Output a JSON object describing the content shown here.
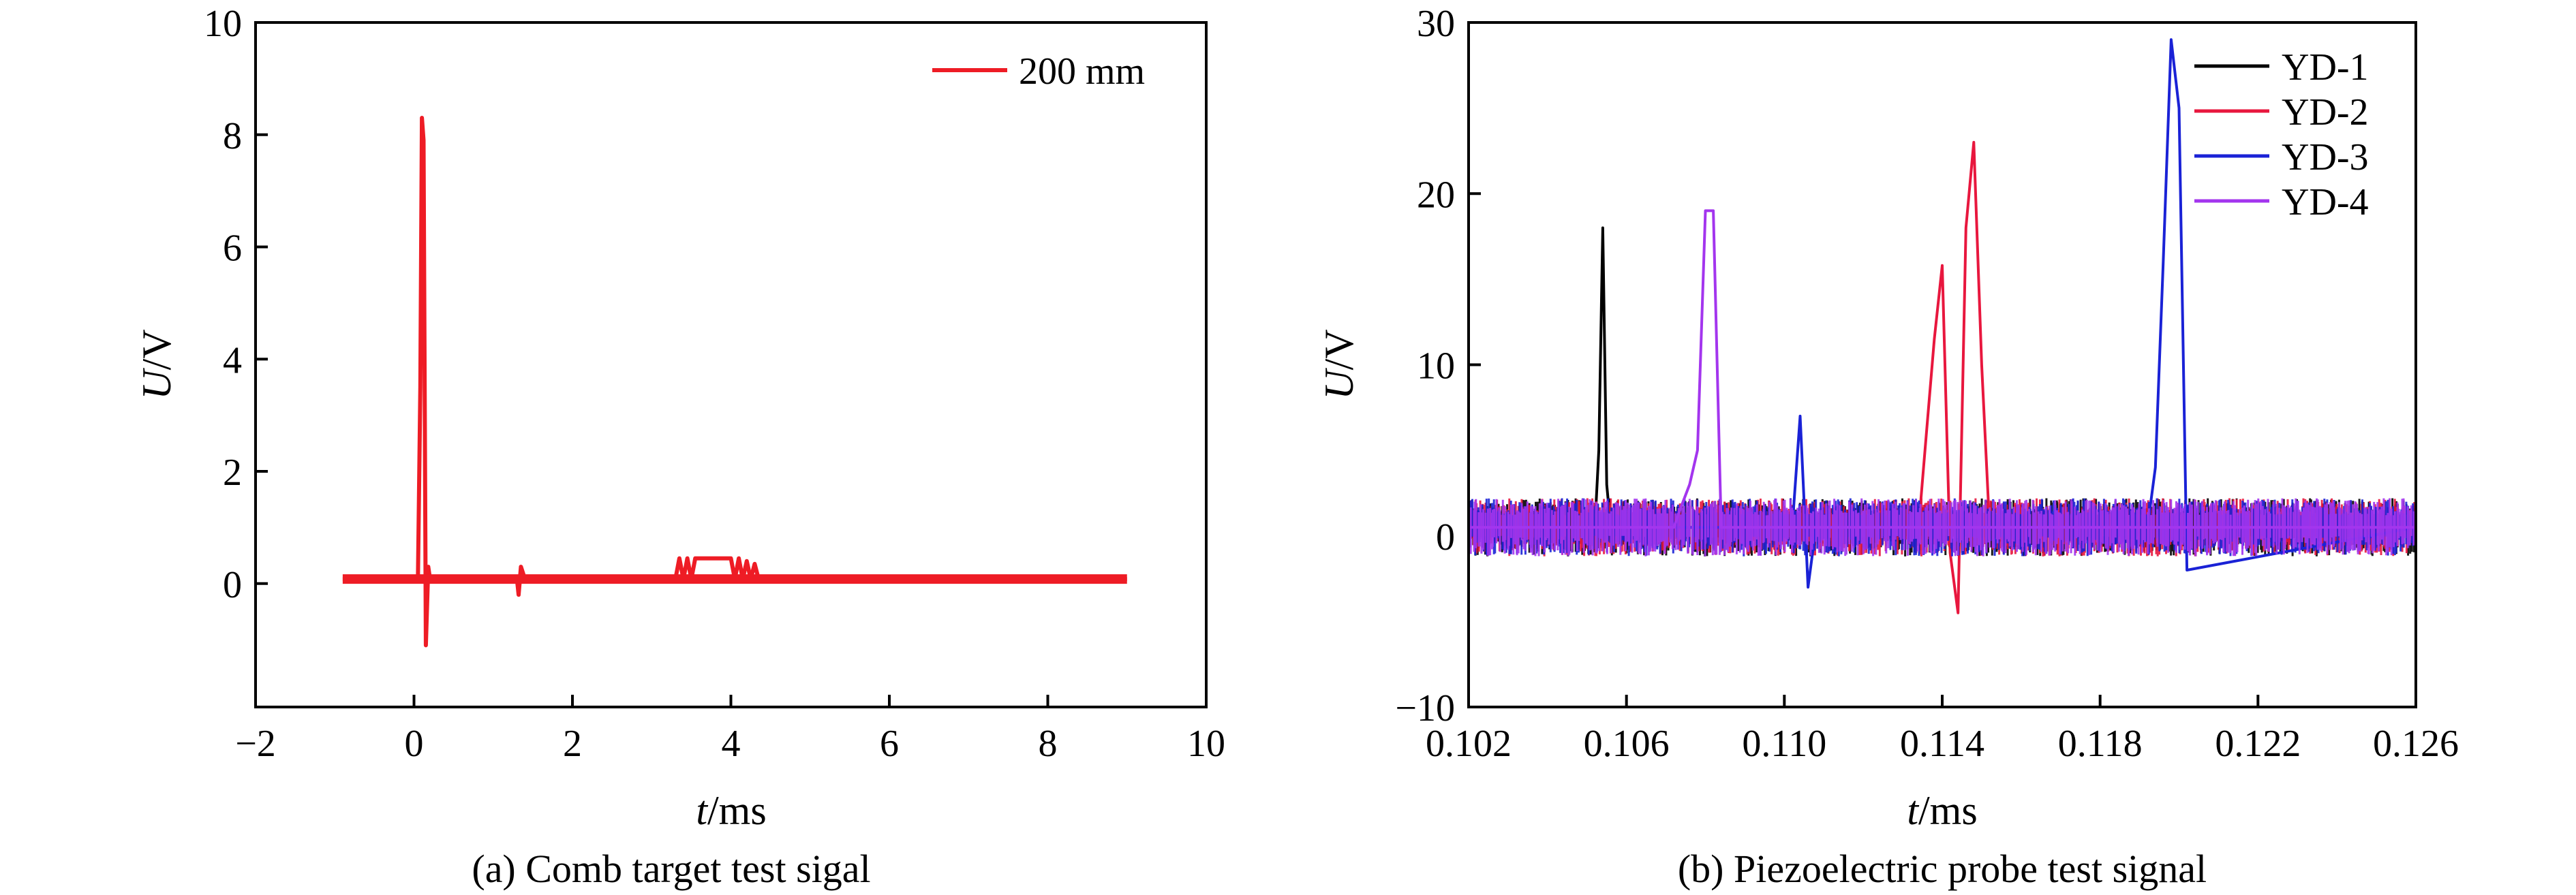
{
  "chart_data": [
    {
      "type": "line",
      "caption": "(a) Comb target test sigal",
      "xlabel_italic": "t",
      "xlabel_unit": "/ms",
      "ylabel_italic": "U",
      "ylabel_unit": "/V",
      "xlim": [
        -2,
        10
      ],
      "ylim": [
        -2.2,
        10
      ],
      "xticks": [
        -2,
        0,
        2,
        4,
        6,
        8,
        10
      ],
      "xtick_labels": [
        "−2",
        "0",
        "2",
        "4",
        "6",
        "8",
        "10"
      ],
      "yticks": [
        0,
        2,
        4,
        6,
        8,
        10
      ],
      "ytick_labels": [
        "0",
        "2",
        "4",
        "6",
        "8",
        "10"
      ],
      "legend_position": "top-right",
      "grid": false,
      "series": [
        {
          "name": "200 mm",
          "color": "#ee1c25",
          "x": [
            -0.9,
            0.0,
            0.05,
            0.08,
            0.1,
            0.12,
            0.15,
            0.18,
            0.2,
            0.25,
            0.3,
            1.3,
            1.32,
            1.35,
            1.4,
            3.3,
            3.35,
            3.4,
            3.45,
            3.5,
            3.55,
            3.6,
            4.0,
            4.05,
            4.1,
            4.15,
            4.2,
            4.25,
            4.3,
            4.35,
            9.0
          ],
          "y": [
            0.08,
            0.08,
            0.1,
            3.5,
            8.3,
            7.9,
            -1.1,
            0.3,
            0.1,
            0.08,
            0.08,
            0.08,
            -0.2,
            0.3,
            0.08,
            0.08,
            0.45,
            0.08,
            0.45,
            0.08,
            0.45,
            0.45,
            0.45,
            0.08,
            0.45,
            0.08,
            0.4,
            0.08,
            0.35,
            0.08,
            0.08
          ]
        }
      ]
    },
    {
      "type": "line",
      "caption": "(b) Piezoelectric probe test signal",
      "xlabel_italic": "t",
      "xlabel_unit": "/ms",
      "ylabel_italic": "U",
      "ylabel_unit": "/V",
      "xlim": [
        0.102,
        0.126
      ],
      "ylim": [
        -10,
        30
      ],
      "xticks": [
        0.102,
        0.106,
        0.11,
        0.114,
        0.118,
        0.122,
        0.126
      ],
      "xtick_labels": [
        "0.102",
        "0.106",
        "0.110",
        "0.114",
        "0.118",
        "0.122",
        "0.126"
      ],
      "yticks": [
        -10,
        0,
        10,
        20,
        30
      ],
      "ytick_labels": [
        "−10",
        "0",
        "10",
        "20",
        "30"
      ],
      "legend_position": "top-right",
      "grid": false,
      "noise_band": [
        -1.2,
        2.2
      ],
      "series": [
        {
          "name": "YD-1",
          "color": "#000000",
          "x": [
            0.102,
            0.1052,
            0.1053,
            0.1054,
            0.1055,
            0.1056,
            0.126
          ],
          "y": [
            0.5,
            0.5,
            5.0,
            18.0,
            3.0,
            0.5,
            0.5
          ]
        },
        {
          "name": "YD-2",
          "color": "#e8173e",
          "x": [
            0.102,
            0.1134,
            0.1136,
            0.1138,
            0.114,
            0.1142,
            0.1144,
            0.1146,
            0.1148,
            0.115,
            0.1152,
            0.126
          ],
          "y": [
            0.5,
            0.5,
            6.0,
            11.5,
            15.8,
            -1.0,
            -4.5,
            18.0,
            23.0,
            10.0,
            0.5,
            0.5
          ]
        },
        {
          "name": "YD-3",
          "color": "#1a22d6",
          "x": [
            0.102,
            0.1102,
            0.1104,
            0.1106,
            0.1108,
            0.1192,
            0.1194,
            0.1196,
            0.1198,
            0.12,
            0.1202,
            0.126
          ],
          "y": [
            0.5,
            0.5,
            7.0,
            -3.0,
            0.5,
            0.5,
            4.0,
            16.0,
            29.0,
            25.0,
            -2.0,
            0.5
          ]
        },
        {
          "name": "YD-4",
          "color": "#a335ee",
          "x": [
            0.102,
            0.1072,
            0.1074,
            0.1076,
            0.1078,
            0.108,
            0.1082,
            0.1084,
            0.126
          ],
          "y": [
            0.5,
            0.5,
            1.8,
            3.0,
            5.0,
            19.0,
            19.0,
            0.5,
            0.5
          ]
        }
      ]
    }
  ]
}
